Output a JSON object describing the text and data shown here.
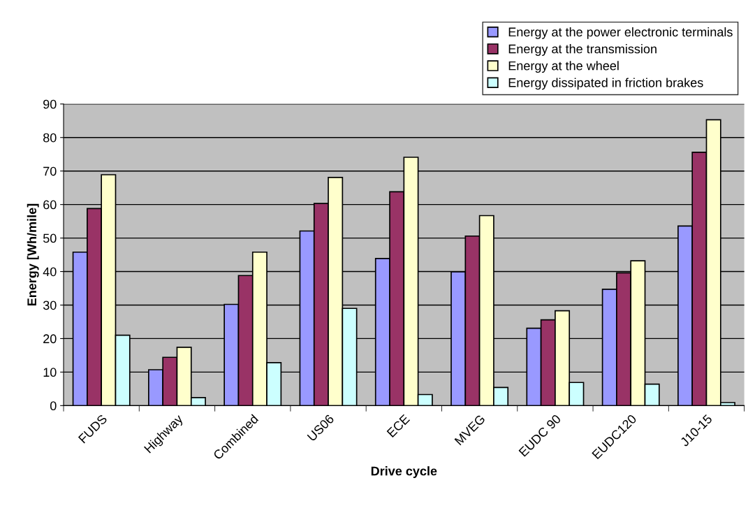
{
  "chart_data": {
    "type": "bar",
    "xlabel": "Drive cycle",
    "ylabel": "Energy [Wh/mile]",
    "categories": [
      "FUDS",
      "Highway",
      "Combined",
      "US06",
      "ECE",
      "MVEG",
      "EUDC 90",
      "EUDC120",
      "J10-15"
    ],
    "series": [
      {
        "name": "Energy at the power electronic terminals",
        "color": "#9999ff",
        "values": [
          45.8,
          10.7,
          30.2,
          52.1,
          43.9,
          39.9,
          23.1,
          34.7,
          53.6
        ]
      },
      {
        "name": "Energy at the transmission",
        "color": "#993366",
        "values": [
          58.8,
          14.4,
          38.8,
          60.3,
          63.8,
          50.6,
          25.6,
          39.6,
          75.6
        ]
      },
      {
        "name": "Energy at the wheel",
        "color": "#ffffcc",
        "values": [
          68.9,
          17.4,
          45.8,
          68.1,
          74.1,
          56.7,
          28.3,
          43.2,
          85.3
        ]
      },
      {
        "name": "Energy dissipated in friction brakes",
        "color": "#ccffff",
        "values": [
          21.0,
          2.4,
          12.8,
          29.0,
          3.3,
          5.4,
          6.9,
          6.4,
          0.9
        ]
      }
    ],
    "ylim": [
      0,
      90
    ],
    "yticks": [
      0,
      10,
      20,
      30,
      40,
      50,
      60,
      70,
      80,
      90
    ],
    "grid": "y",
    "legend": "top right"
  }
}
